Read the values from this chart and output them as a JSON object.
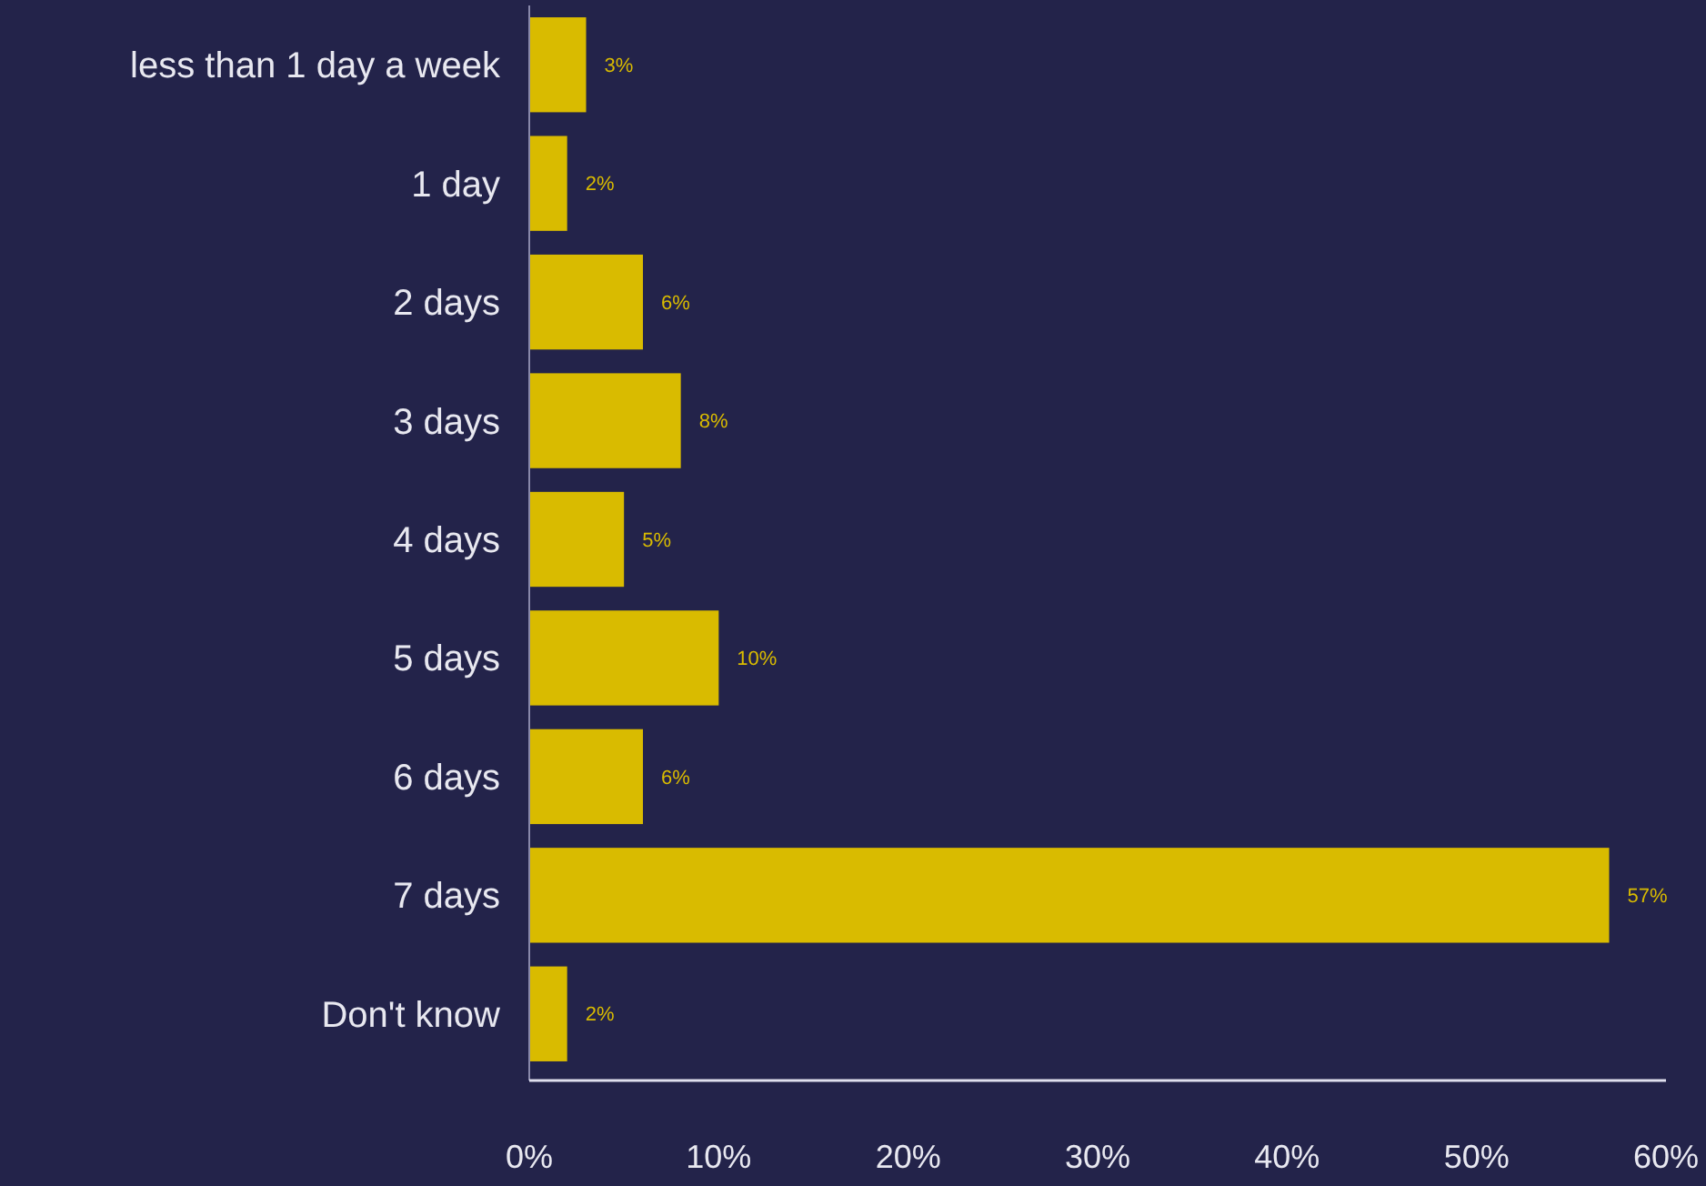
{
  "chart_data": {
    "type": "bar",
    "orientation": "horizontal",
    "categories": [
      "less than 1 day a week",
      "1 day",
      "2 days",
      "3 days",
      "4 days",
      "5 days",
      "6 days",
      "7 days",
      "Don't know"
    ],
    "values": [
      3,
      2,
      6,
      8,
      5,
      10,
      6,
      57,
      2
    ],
    "value_labels": [
      "3%",
      "2%",
      "6%",
      "8%",
      "5%",
      "10%",
      "6%",
      "57%",
      "2%"
    ],
    "color": "#d9bb00",
    "xlim": [
      0,
      60
    ],
    "xticks": [
      {
        "value": 0,
        "label": "0%"
      },
      {
        "value": 10,
        "label": "10%"
      },
      {
        "value": 20,
        "label": "20%"
      },
      {
        "value": 30,
        "label": "30%"
      },
      {
        "value": 40,
        "label": "40%"
      },
      {
        "value": 50,
        "label": "50%"
      },
      {
        "value": 60,
        "label": "60%"
      }
    ],
    "grid": false
  }
}
